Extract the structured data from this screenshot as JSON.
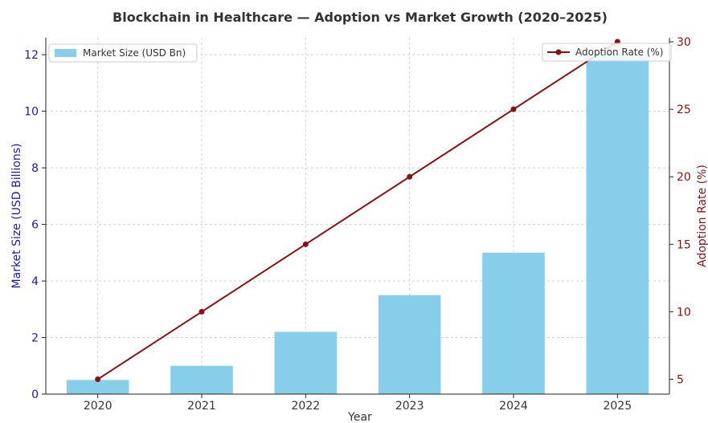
{
  "colors": {
    "bar": "#87ceeb",
    "line": "#8b1010",
    "left_axis": "#1a1ab0",
    "right_axis": "#8b1010",
    "grid": "#d0d0d0",
    "text": "#333333"
  },
  "chart_data": {
    "type": "bar",
    "title": "Blockchain in Healthcare — Adoption vs Market Growth (2020–2025)",
    "xlabel": "Year",
    "ylabel_left": "Market Size (USD Billions)",
    "ylabel_right": "Adoption Rate (%)",
    "categories": [
      "2020",
      "2021",
      "2022",
      "2023",
      "2024",
      "2025"
    ],
    "series": [
      {
        "name": "Market Size (USD Bn)",
        "type": "bar",
        "axis": "left",
        "values": [
          0.5,
          1.0,
          2.2,
          3.5,
          5.0,
          12.0
        ]
      },
      {
        "name": "Adoption Rate (%)",
        "type": "line",
        "axis": "right",
        "values": [
          5,
          10,
          15,
          20,
          25,
          30
        ]
      }
    ],
    "ylim_left": [
      0,
      12.6
    ],
    "ylim_right": [
      3.9,
      30.3
    ],
    "yticks_left": [
      0,
      2,
      4,
      6,
      8,
      10,
      12
    ],
    "yticks_right": [
      5,
      10,
      15,
      20,
      25,
      30
    ],
    "grid": true,
    "legend_left_placement": "top-left",
    "legend_right_placement": "top-right"
  }
}
